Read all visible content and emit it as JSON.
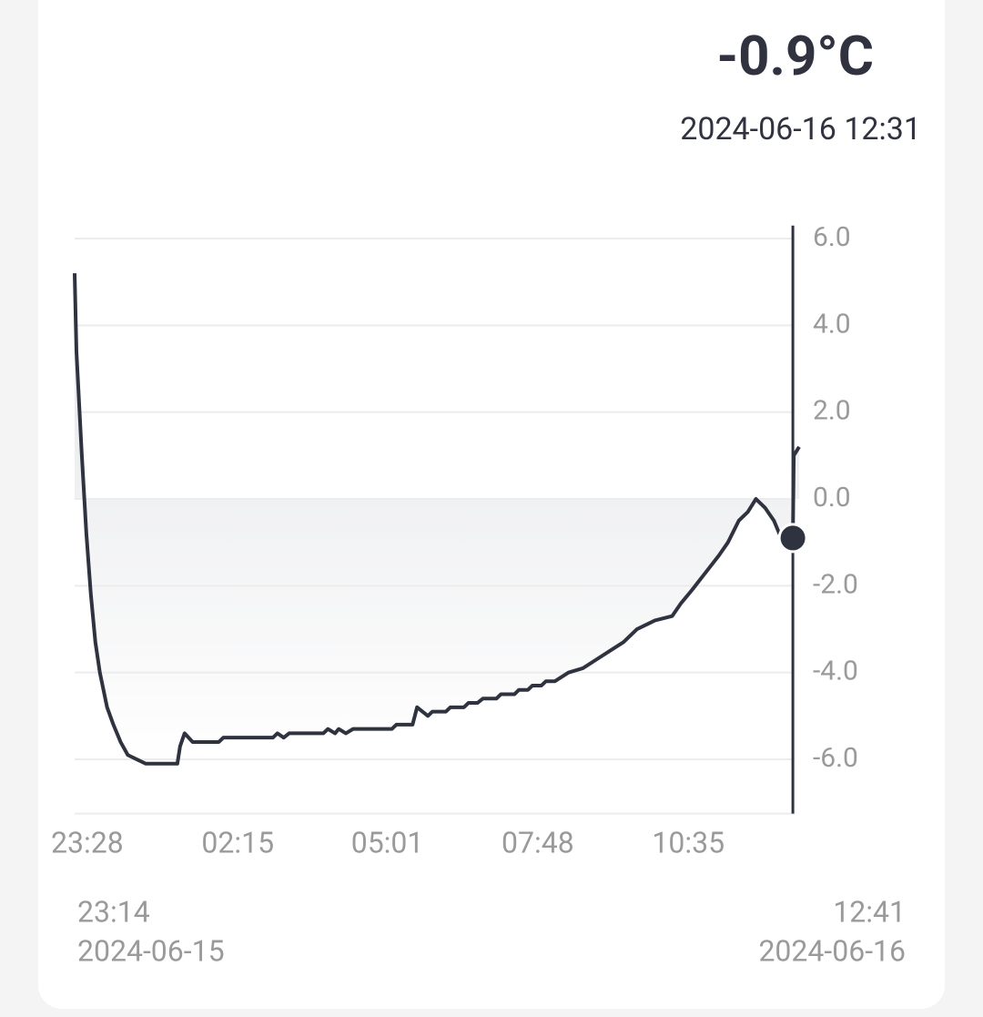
{
  "chart_data": {
    "type": "line",
    "cursor": {
      "x": "2024-06-16 12:31",
      "value": -0.9,
      "value_label": "-0.9°C"
    },
    "range_labels": {
      "start_time": "23:14",
      "start_date": "2024-06-15",
      "end_time": "12:41",
      "end_date": "2024-06-16"
    },
    "xlim": [
      "2024-06-15 23:14",
      "2024-06-16 12:41"
    ],
    "xticks": [
      {
        "value": "2024-06-15 23:28",
        "label": "23:28"
      },
      {
        "value": "2024-06-16 02:15",
        "label": "02:15"
      },
      {
        "value": "2024-06-16 05:01",
        "label": "05:01"
      },
      {
        "value": "2024-06-16 07:48",
        "label": "07:48"
      },
      {
        "value": "2024-06-16 10:35",
        "label": "10:35"
      }
    ],
    "ylim": [
      -7.25,
      6.3
    ],
    "yticks": [
      {
        "value": 6,
        "label": "6.0"
      },
      {
        "value": 4,
        "label": "4.0"
      },
      {
        "value": 2,
        "label": "2.0"
      },
      {
        "value": 0,
        "label": "0.0"
      },
      {
        "value": -2,
        "label": "-2.0"
      },
      {
        "value": -4,
        "label": "-4.0"
      },
      {
        "value": -6,
        "label": "-6.0"
      }
    ],
    "grid": true,
    "color": "#2f3340",
    "x": [
      "2024-06-15 23:14",
      "2024-06-15 23:16",
      "2024-06-15 23:22",
      "2024-06-15 23:27",
      "2024-06-15 23:32",
      "2024-06-15 23:37",
      "2024-06-15 23:42",
      "2024-06-15 23:50",
      "2024-06-15 23:57",
      "2024-06-16 00:05",
      "2024-06-16 00:13",
      "2024-06-16 00:23",
      "2024-06-16 00:33",
      "2024-06-16 01:08",
      "2024-06-16 01:11",
      "2024-06-16 01:16",
      "2024-06-16 01:25",
      "2024-06-16 01:54",
      "2024-06-16 01:59",
      "2024-06-16 02:54",
      "2024-06-16 02:59",
      "2024-06-16 03:06",
      "2024-06-16 03:12",
      "2024-06-16 03:50",
      "2024-06-16 03:55",
      "2024-06-16 04:03",
      "2024-06-16 04:07",
      "2024-06-16 04:15",
      "2024-06-16 04:23",
      "2024-06-16 05:06",
      "2024-06-16 05:11",
      "2024-06-16 05:29",
      "2024-06-16 05:34",
      "2024-06-16 05:46",
      "2024-06-16 05:51",
      "2024-06-16 06:06",
      "2024-06-16 06:11",
      "2024-06-16 06:26",
      "2024-06-16 06:31",
      "2024-06-16 06:41",
      "2024-06-16 06:47",
      "2024-06-16 07:02",
      "2024-06-16 07:07",
      "2024-06-16 07:22",
      "2024-06-16 07:27",
      "2024-06-16 07:37",
      "2024-06-16 07:42",
      "2024-06-16 07:52",
      "2024-06-16 07:57",
      "2024-06-16 08:07",
      "2024-06-16 08:22",
      "2024-06-16 08:38",
      "2024-06-16 08:53",
      "2024-06-16 09:08",
      "2024-06-16 09:23",
      "2024-06-16 09:38",
      "2024-06-16 09:58",
      "2024-06-16 10:17",
      "2024-06-16 10:27",
      "2024-06-16 10:39",
      "2024-06-16 10:54",
      "2024-06-16 11:09",
      "2024-06-16 11:19",
      "2024-06-16 11:31",
      "2024-06-16 11:41",
      "2024-06-16 11:50",
      "2024-06-16 12:00",
      "2024-06-16 12:10",
      "2024-06-16 12:16",
      "2024-06-16 12:31",
      "2024-06-16 12:32",
      "2024-06-16 12:38"
    ],
    "values": [
      5.2,
      3.4,
      1.0,
      -0.8,
      -2.2,
      -3.3,
      -4.0,
      -4.8,
      -5.2,
      -5.6,
      -5.9,
      -6.0,
      -6.1,
      -6.1,
      -5.7,
      -5.4,
      -5.6,
      -5.6,
      -5.5,
      -5.5,
      -5.4,
      -5.5,
      -5.4,
      -5.4,
      -5.3,
      -5.4,
      -5.3,
      -5.4,
      -5.3,
      -5.3,
      -5.2,
      -5.2,
      -4.8,
      -5.0,
      -4.9,
      -4.9,
      -4.8,
      -4.8,
      -4.7,
      -4.7,
      -4.6,
      -4.6,
      -4.5,
      -4.5,
      -4.4,
      -4.4,
      -4.3,
      -4.3,
      -4.2,
      -4.2,
      -4.0,
      -3.9,
      -3.7,
      -3.5,
      -3.3,
      -3.0,
      -2.8,
      -2.7,
      -2.4,
      -2.1,
      -1.7,
      -1.3,
      -1.0,
      -0.5,
      -0.3,
      0.0,
      -0.2,
      -0.5,
      -0.8,
      -0.9,
      1.0,
      1.2
    ]
  }
}
